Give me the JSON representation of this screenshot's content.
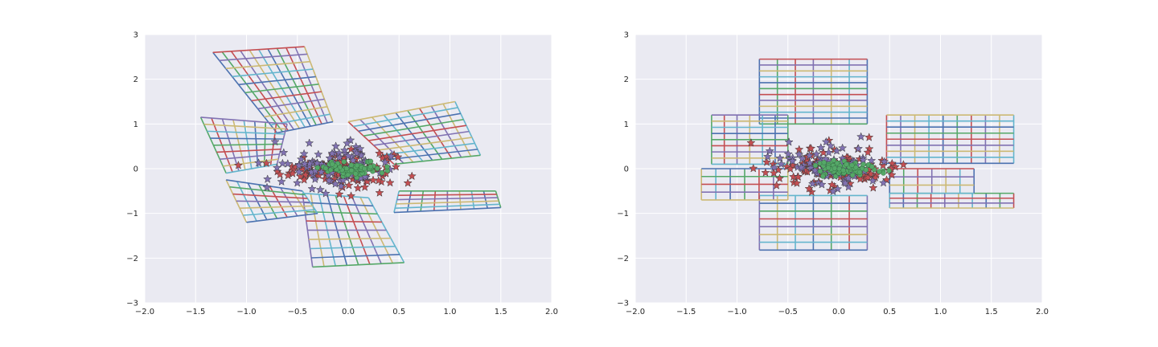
{
  "chart_data": [
    {
      "type": "line",
      "title": "",
      "xlabel": "",
      "ylabel": "",
      "xlim": [
        -2.0,
        2.0
      ],
      "ylim": [
        -3,
        3
      ],
      "xticks": [
        "−2.0",
        "−1.5",
        "−1.0",
        "−0.5",
        "0.0",
        "0.5",
        "1.0",
        "1.5",
        "2.0"
      ],
      "yticks": [
        "−3",
        "−2",
        "−1",
        "0",
        "1",
        "2",
        "3"
      ],
      "grid": true,
      "background": "#EAEAF2",
      "line_colors": [
        "#4C72B0",
        "#55A868",
        "#C44E52",
        "#8172B2",
        "#CCB974",
        "#64B5CD"
      ],
      "grid_polygons": [
        {
          "name": "upper-arm",
          "corners": [
            [
              -1.33,
              2.6
            ],
            [
              -0.43,
              2.73
            ],
            [
              -0.15,
              1.05
            ],
            [
              -0.7,
              0.8
            ]
          ],
          "nu": 10,
          "nv": 10
        },
        {
          "name": "left-arm",
          "corners": [
            [
              -1.45,
              1.15
            ],
            [
              -0.6,
              1.0
            ],
            [
              -0.7,
              0.1
            ],
            [
              -1.2,
              -0.1
            ]
          ],
          "nu": 8,
          "nv": 8
        },
        {
          "name": "right-arm",
          "corners": [
            [
              0.0,
              1.05
            ],
            [
              1.05,
              1.5
            ],
            [
              1.3,
              0.3
            ],
            [
              0.45,
              0.1
            ]
          ],
          "nu": 9,
          "nv": 9
        },
        {
          "name": "lower-arm",
          "corners": [
            [
              -0.45,
              -0.55
            ],
            [
              0.2,
              -0.65
            ],
            [
              0.55,
              -2.1
            ],
            [
              -0.35,
              -2.2
            ]
          ],
          "nu": 8,
          "nv": 8
        },
        {
          "name": "lower-left-arm",
          "corners": [
            [
              -1.2,
              -0.25
            ],
            [
              -0.45,
              -0.5
            ],
            [
              -0.3,
              -1.0
            ],
            [
              -1.0,
              -1.2
            ]
          ],
          "nu": 7,
          "nv": 6
        },
        {
          "name": "lower-right-arm",
          "corners": [
            [
              0.5,
              -0.5
            ],
            [
              1.45,
              -0.5
            ],
            [
              1.5,
              -0.87
            ],
            [
              0.45,
              -0.98
            ]
          ],
          "nu": 8,
          "nv": 5
        }
      ],
      "scatter_series": [
        {
          "marker": "star",
          "color": "#C44E52",
          "count": 130,
          "center": [
            -0.1,
            0.0
          ],
          "spread": [
            0.28,
            0.2
          ]
        },
        {
          "marker": "star",
          "color": "#8172B2",
          "count": 90,
          "center": [
            -0.15,
            0.05
          ],
          "spread": [
            0.3,
            0.25
          ]
        },
        {
          "marker": "circle",
          "color": "#55A868",
          "count": 80,
          "center": [
            0.05,
            0.0
          ],
          "spread": [
            0.15,
            0.08
          ]
        }
      ]
    },
    {
      "type": "line",
      "title": "",
      "xlabel": "",
      "ylabel": "",
      "xlim": [
        -2.0,
        2.0
      ],
      "ylim": [
        -3,
        3
      ],
      "xticks": [
        "−2.0",
        "−1.5",
        "−1.0",
        "−0.5",
        "0.0",
        "0.5",
        "1.0",
        "1.5",
        "2.0"
      ],
      "yticks": [
        "−3",
        "−2",
        "−1",
        "0",
        "1",
        "2",
        "3"
      ],
      "grid": true,
      "background": "#EAEAF2",
      "line_colors": [
        "#4C72B0",
        "#55A868",
        "#C44E52",
        "#8172B2",
        "#CCB974",
        "#64B5CD"
      ],
      "grid_polygons": [
        {
          "name": "top-block",
          "corners": [
            [
              -0.78,
              2.45
            ],
            [
              0.28,
              2.45
            ],
            [
              0.28,
              1.0
            ],
            [
              -0.78,
              1.0
            ]
          ],
          "nu": 6,
          "nv": 11
        },
        {
          "name": "left-block",
          "corners": [
            [
              -1.25,
              1.2
            ],
            [
              -0.5,
              1.2
            ],
            [
              -0.5,
              0.1
            ],
            [
              -1.25,
              0.1
            ]
          ],
          "nu": 6,
          "nv": 8
        },
        {
          "name": "right-block",
          "corners": [
            [
              0.47,
              1.2
            ],
            [
              1.72,
              1.2
            ],
            [
              1.72,
              0.12
            ],
            [
              0.47,
              0.12
            ]
          ],
          "nu": 9,
          "nv": 8
        },
        {
          "name": "bottom-block",
          "corners": [
            [
              -0.78,
              -0.6
            ],
            [
              0.28,
              -0.6
            ],
            [
              0.28,
              -1.82
            ],
            [
              -0.78,
              -1.82
            ]
          ],
          "nu": 6,
          "nv": 7
        },
        {
          "name": "left-lower-block",
          "corners": [
            [
              -1.35,
              0.0
            ],
            [
              -0.5,
              0.0
            ],
            [
              -0.5,
              -0.7
            ],
            [
              -1.35,
              -0.7
            ]
          ],
          "nu": 6,
          "nv": 4
        },
        {
          "name": "right-lower-block",
          "corners": [
            [
              0.5,
              -0.55
            ],
            [
              1.72,
              -0.55
            ],
            [
              1.72,
              -0.88
            ],
            [
              0.5,
              -0.88
            ]
          ],
          "nu": 9,
          "nv": 3
        },
        {
          "name": "mid-right-block",
          "corners": [
            [
              0.5,
              0.0
            ],
            [
              1.33,
              0.0
            ],
            [
              1.33,
              -0.55
            ],
            [
              0.5,
              -0.55
            ]
          ],
          "nu": 6,
          "nv": 3
        }
      ],
      "scatter_series": [
        {
          "marker": "star",
          "color": "#C44E52",
          "count": 130,
          "center": [
            -0.05,
            0.0
          ],
          "spread": [
            0.3,
            0.2
          ]
        },
        {
          "marker": "star",
          "color": "#8172B2",
          "count": 90,
          "center": [
            -0.1,
            0.05
          ],
          "spread": [
            0.3,
            0.25
          ]
        },
        {
          "marker": "circle",
          "color": "#55A868",
          "count": 80,
          "center": [
            0.05,
            0.0
          ],
          "spread": [
            0.15,
            0.08
          ]
        }
      ]
    }
  ]
}
